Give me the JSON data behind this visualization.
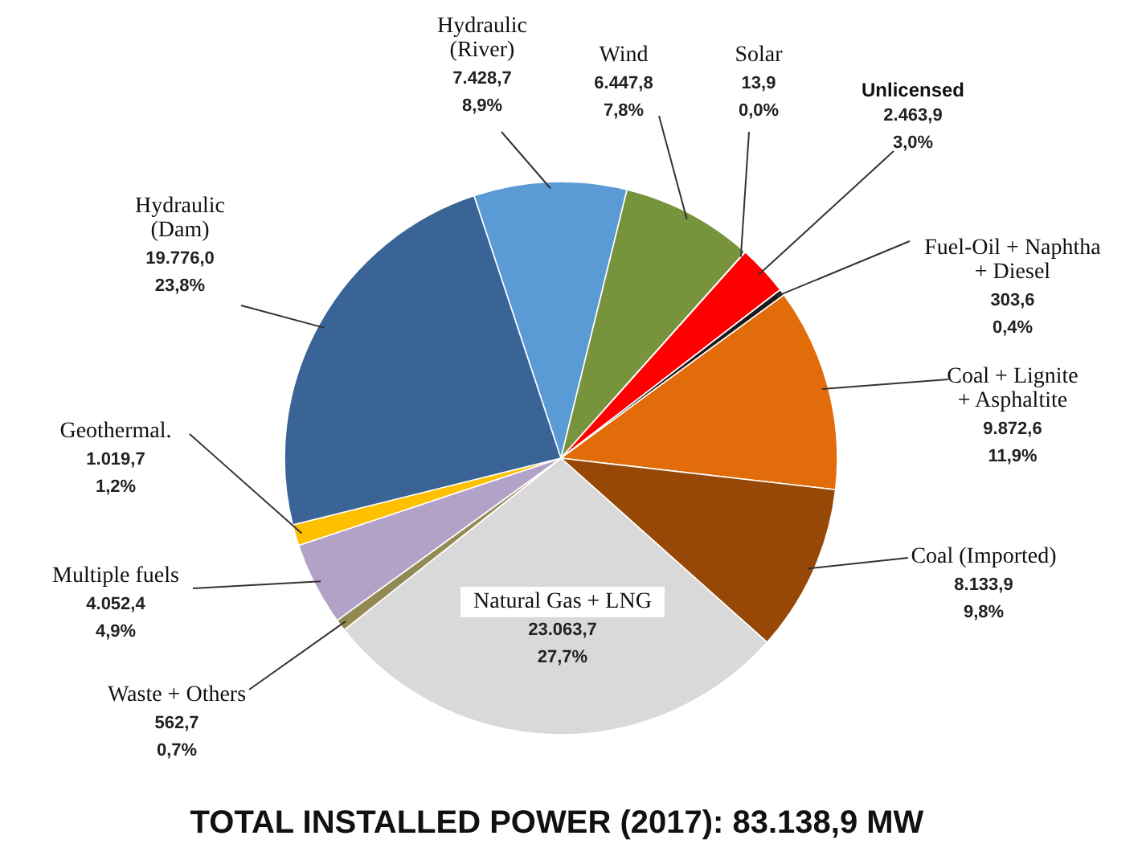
{
  "chart_data": {
    "type": "pie",
    "title": "TOTAL INSTALLED POWER (2017): 83.138,9 MW",
    "categories": [
      "Hydraulic (River)",
      "Wind",
      "Solar",
      "Unlicensed",
      "Fuel-Oil + Naphtha + Diesel",
      "Coal + Lignite + Asphaltite",
      "Coal (Imported)",
      "Natural Gas + LNG",
      "Waste + Others",
      "Multiple fuels",
      "Geothermal.",
      "Hydraulic (Dam)"
    ],
    "values": [
      7428.7,
      6447.8,
      13.9,
      2463.9,
      303.6,
      9872.6,
      8133.9,
      23063.7,
      562.7,
      4052.4,
      1019.7,
      19776.0
    ],
    "colors": [
      "#5b9bd5",
      "#77933c",
      "#4f81bd",
      "#ff0000",
      "#1a1a1a",
      "#e36c0a",
      "#974806",
      "#d9d9d9",
      "#938953",
      "#b3a2c7",
      "#ffc000",
      "#3a6496"
    ],
    "value_labels": [
      "7.428,7\n8,9%",
      "6.447,8\n7,8%",
      "13,9\n0,0%",
      "2.463,9\n3,0%",
      "303,6\n0,4%",
      "9.872,6\n11,9%",
      "8.133,9\n9,8%",
      "23.063,7\n27,7%",
      "562,7\n0,7%",
      "4.052,4\n4,9%",
      "1.019,7\n1,2%",
      "19.776,0\n23,8%"
    ]
  }
}
